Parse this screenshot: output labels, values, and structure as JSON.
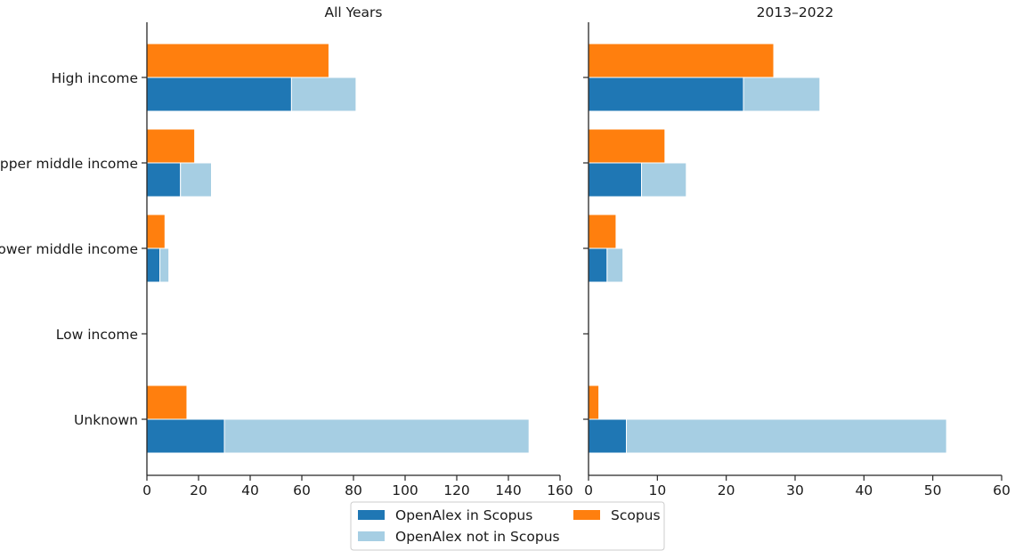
{
  "chart_data": [
    {
      "type": "bar",
      "orientation": "horizontal",
      "stacking": "OpenAlex series stacked; Scopus grouped alongside",
      "title": "All Years",
      "categories": [
        "High income",
        "Upper middle income",
        "Lower middle income",
        "Low income",
        "Unknown"
      ],
      "series": [
        {
          "name": "OpenAlex in Scopus",
          "values": [
            56,
            13,
            5,
            0,
            30
          ],
          "color": "#1f77b4"
        },
        {
          "name": "OpenAlex not in Scopus",
          "values": [
            25,
            12,
            3.5,
            0,
            118
          ],
          "color": "#a6cee3"
        },
        {
          "name": "Scopus",
          "values": [
            70.5,
            18.5,
            7,
            0,
            15.5
          ],
          "color": "#ff7f0e"
        }
      ],
      "xlim": [
        0,
        160
      ],
      "xticks": [
        "0",
        "20",
        "40",
        "60",
        "80",
        "100",
        "120",
        "140",
        "160"
      ],
      "xlabel": "",
      "ylabel": "",
      "grid": false
    },
    {
      "type": "bar",
      "orientation": "horizontal",
      "stacking": "OpenAlex series stacked; Scopus grouped alongside",
      "title": "2013–2022",
      "categories": [
        "High income",
        "Upper middle income",
        "Lower middle income",
        "Low income",
        "Unknown"
      ],
      "series": [
        {
          "name": "OpenAlex in Scopus",
          "values": [
            22.5,
            7.7,
            2.7,
            0,
            5.5
          ],
          "color": "#1f77b4"
        },
        {
          "name": "OpenAlex not in Scopus",
          "values": [
            11.1,
            6.5,
            2.3,
            0,
            46.5
          ],
          "color": "#a6cee3"
        },
        {
          "name": "Scopus",
          "values": [
            26.9,
            11.1,
            4,
            0,
            1.5
          ],
          "color": "#ff7f0e"
        }
      ],
      "xlim": [
        0,
        60
      ],
      "xticks": [
        "0",
        "10",
        "20",
        "30",
        "40",
        "50",
        "60"
      ],
      "xlabel": "",
      "ylabel": "",
      "grid": false
    }
  ],
  "legend": {
    "placement": "bottom-center",
    "entries": [
      {
        "label": "OpenAlex in Scopus",
        "color": "#1f77b4"
      },
      {
        "label": "OpenAlex not in Scopus",
        "color": "#a6cee3"
      },
      {
        "label": "Scopus",
        "color": "#ff7f0e"
      }
    ]
  }
}
